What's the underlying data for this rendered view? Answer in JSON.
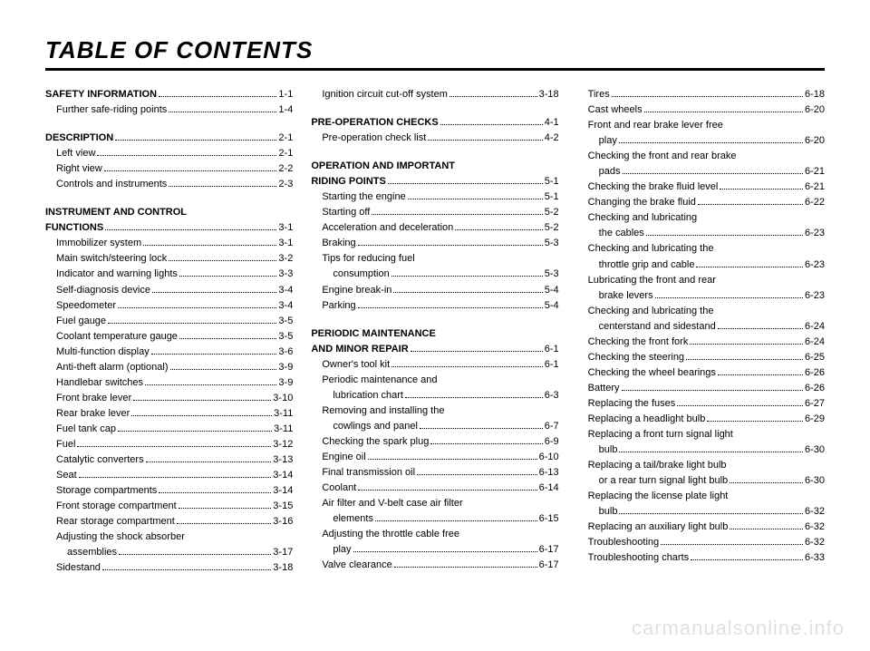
{
  "title": "TABLE OF CONTENTS",
  "watermark": "carmanualsonline.info",
  "columns": [
    {
      "items": [
        {
          "label": "SAFETY INFORMATION",
          "page": "1-1",
          "bold": true,
          "indent": 0
        },
        {
          "label": "Further safe-riding points",
          "page": "1-4",
          "indent": 1
        },
        {
          "spacer": true
        },
        {
          "label": "DESCRIPTION",
          "page": "2-1",
          "bold": true,
          "indent": 0
        },
        {
          "label": "Left view",
          "page": "2-1",
          "indent": 1
        },
        {
          "label": "Right view",
          "page": "2-2",
          "indent": 1
        },
        {
          "label": "Controls and instruments",
          "page": "2-3",
          "indent": 1
        },
        {
          "spacer": true
        },
        {
          "label": "INSTRUMENT AND CONTROL",
          "bold": true,
          "indent": 0,
          "noDots": true
        },
        {
          "label": "FUNCTIONS",
          "page": "3-1",
          "bold": true,
          "indent": 0
        },
        {
          "label": "Immobilizer system",
          "page": "3-1",
          "indent": 1
        },
        {
          "label": "Main switch/steering lock",
          "page": "3-2",
          "indent": 1
        },
        {
          "label": "Indicator and warning lights",
          "page": "3-3",
          "indent": 1
        },
        {
          "label": "Self-diagnosis device",
          "page": "3-4",
          "indent": 1
        },
        {
          "label": "Speedometer",
          "page": "3-4",
          "indent": 1
        },
        {
          "label": "Fuel gauge",
          "page": "3-5",
          "indent": 1
        },
        {
          "label": "Coolant temperature gauge",
          "page": "3-5",
          "indent": 1
        },
        {
          "label": "Multi-function display",
          "page": "3-6",
          "indent": 1
        },
        {
          "label": "Anti-theft alarm (optional)",
          "page": "3-9",
          "indent": 1
        },
        {
          "label": "Handlebar switches",
          "page": "3-9",
          "indent": 1
        },
        {
          "label": "Front brake lever",
          "page": "3-10",
          "indent": 1
        },
        {
          "label": "Rear brake lever",
          "page": "3-11",
          "indent": 1
        },
        {
          "label": "Fuel tank cap",
          "page": "3-11",
          "indent": 1
        },
        {
          "label": "Fuel",
          "page": "3-12",
          "indent": 1
        },
        {
          "label": "Catalytic converters",
          "page": "3-13",
          "indent": 1
        },
        {
          "label": "Seat",
          "page": "3-14",
          "indent": 1
        },
        {
          "label": "Storage compartments",
          "page": "3-14",
          "indent": 1
        },
        {
          "label": "Front storage compartment",
          "page": "3-15",
          "indent": 1
        },
        {
          "label": "Rear storage compartment",
          "page": "3-16",
          "indent": 1
        },
        {
          "label": "Adjusting the shock absorber",
          "indent": 1,
          "noDots": true
        },
        {
          "label": "assemblies",
          "page": "3-17",
          "indent": 2
        },
        {
          "label": "Sidestand",
          "page": "3-18",
          "indent": 1
        }
      ]
    },
    {
      "items": [
        {
          "label": "Ignition circuit cut-off system",
          "page": "3-18",
          "indent": 1
        },
        {
          "spacer": true
        },
        {
          "label": "PRE-OPERATION CHECKS",
          "page": "4-1",
          "bold": true,
          "indent": 0
        },
        {
          "label": "Pre-operation check list",
          "page": "4-2",
          "indent": 1
        },
        {
          "spacer": true
        },
        {
          "label": "OPERATION AND IMPORTANT",
          "bold": true,
          "indent": 0,
          "noDots": true
        },
        {
          "label": "RIDING POINTS",
          "page": "5-1",
          "bold": true,
          "indent": 0
        },
        {
          "label": "Starting the engine",
          "page": "5-1",
          "indent": 1
        },
        {
          "label": "Starting off",
          "page": "5-2",
          "indent": 1
        },
        {
          "label": "Acceleration and deceleration",
          "page": "5-2",
          "indent": 1
        },
        {
          "label": "Braking",
          "page": "5-3",
          "indent": 1
        },
        {
          "label": "Tips for reducing fuel",
          "indent": 1,
          "noDots": true
        },
        {
          "label": "consumption",
          "page": "5-3",
          "indent": 2
        },
        {
          "label": "Engine break-in",
          "page": "5-4",
          "indent": 1
        },
        {
          "label": "Parking",
          "page": "5-4",
          "indent": 1
        },
        {
          "spacer": true
        },
        {
          "label": "PERIODIC MAINTENANCE",
          "bold": true,
          "indent": 0,
          "noDots": true
        },
        {
          "label": "AND MINOR REPAIR",
          "page": "6-1",
          "bold": true,
          "indent": 0
        },
        {
          "label": "Owner's tool kit",
          "page": "6-1",
          "indent": 1
        },
        {
          "label": "Periodic maintenance and",
          "indent": 1,
          "noDots": true
        },
        {
          "label": "lubrication chart",
          "page": "6-3",
          "indent": 2
        },
        {
          "label": "Removing and installing the",
          "indent": 1,
          "noDots": true
        },
        {
          "label": "cowlings and panel",
          "page": "6-7",
          "indent": 2
        },
        {
          "label": "Checking the spark plug",
          "page": "6-9",
          "indent": 1
        },
        {
          "label": "Engine oil",
          "page": "6-10",
          "indent": 1
        },
        {
          "label": "Final transmission oil",
          "page": "6-13",
          "indent": 1
        },
        {
          "label": "Coolant",
          "page": "6-14",
          "indent": 1
        },
        {
          "label": "Air filter and V-belt case air filter",
          "indent": 1,
          "noDots": true
        },
        {
          "label": "elements",
          "page": "6-15",
          "indent": 2
        },
        {
          "label": "Adjusting the throttle cable free",
          "indent": 1,
          "noDots": true
        },
        {
          "label": "play",
          "page": "6-17",
          "indent": 2
        },
        {
          "label": "Valve clearance",
          "page": "6-17",
          "indent": 1
        }
      ]
    },
    {
      "items": [
        {
          "label": "Tires",
          "page": "6-18",
          "indent": 1
        },
        {
          "label": "Cast wheels",
          "page": "6-20",
          "indent": 1
        },
        {
          "label": "Front and rear brake lever free",
          "indent": 1,
          "noDots": true
        },
        {
          "label": "play",
          "page": "6-20",
          "indent": 2
        },
        {
          "label": "Checking the front and rear brake",
          "indent": 1,
          "noDots": true
        },
        {
          "label": "pads",
          "page": "6-21",
          "indent": 2
        },
        {
          "label": "Checking the brake fluid level",
          "page": "6-21",
          "indent": 1
        },
        {
          "label": "Changing the brake fluid",
          "page": "6-22",
          "indent": 1
        },
        {
          "label": "Checking and lubricating",
          "indent": 1,
          "noDots": true
        },
        {
          "label": "the cables",
          "page": "6-23",
          "indent": 2
        },
        {
          "label": "Checking and lubricating the",
          "indent": 1,
          "noDots": true
        },
        {
          "label": "throttle grip and cable",
          "page": "6-23",
          "indent": 2
        },
        {
          "label": "Lubricating the front and rear",
          "indent": 1,
          "noDots": true
        },
        {
          "label": "brake levers",
          "page": "6-23",
          "indent": 2
        },
        {
          "label": "Checking and lubricating the",
          "indent": 1,
          "noDots": true
        },
        {
          "label": "centerstand and sidestand",
          "page": "6-24",
          "indent": 2
        },
        {
          "label": "Checking the front fork",
          "page": "6-24",
          "indent": 1
        },
        {
          "label": "Checking the steering",
          "page": "6-25",
          "indent": 1
        },
        {
          "label": "Checking the wheel bearings",
          "page": "6-26",
          "indent": 1
        },
        {
          "label": "Battery",
          "page": "6-26",
          "indent": 1
        },
        {
          "label": "Replacing the fuses",
          "page": "6-27",
          "indent": 1
        },
        {
          "label": "Replacing a headlight bulb",
          "page": "6-29",
          "indent": 1
        },
        {
          "label": "Replacing a front turn signal light",
          "indent": 1,
          "noDots": true
        },
        {
          "label": "bulb",
          "page": "6-30",
          "indent": 2
        },
        {
          "label": "Replacing a tail/brake light bulb",
          "indent": 1,
          "noDots": true
        },
        {
          "label": "or a rear turn signal light bulb",
          "page": "6-30",
          "indent": 2
        },
        {
          "label": "Replacing the license plate light",
          "indent": 1,
          "noDots": true
        },
        {
          "label": "bulb",
          "page": "6-32",
          "indent": 2
        },
        {
          "label": "Replacing an auxiliary light bulb",
          "page": "6-32",
          "indent": 1
        },
        {
          "label": "Troubleshooting",
          "page": "6-32",
          "indent": 1
        },
        {
          "label": "Troubleshooting charts",
          "page": "6-33",
          "indent": 1
        }
      ]
    }
  ]
}
